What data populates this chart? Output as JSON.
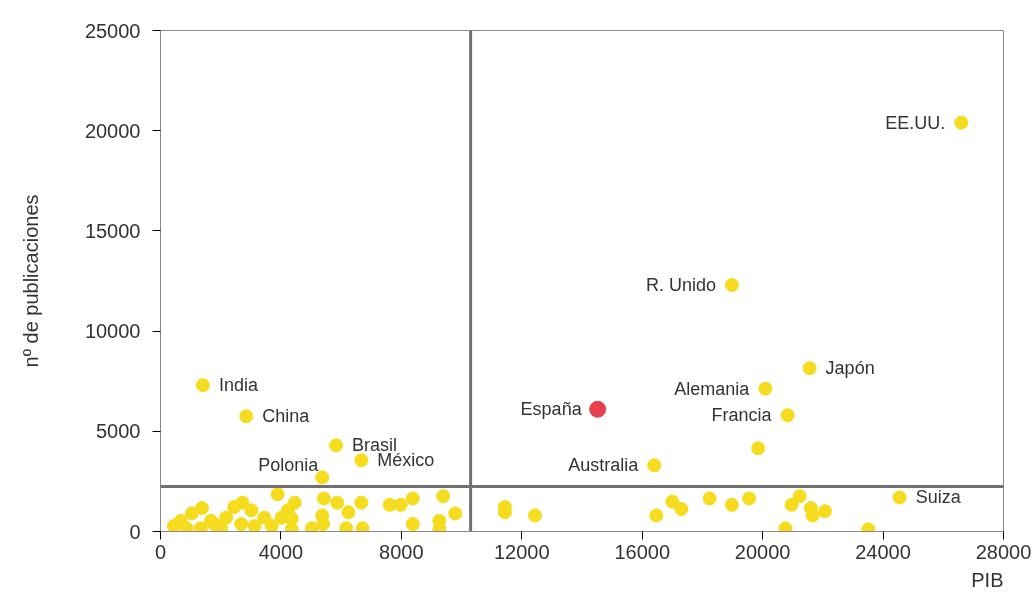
{
  "chart_data": {
    "type": "scatter",
    "xlabel": "PIB",
    "ylabel": "nº de publicaciones",
    "xlim": [
      0,
      28000
    ],
    "ylim": [
      0,
      25000
    ],
    "xticks": [
      0,
      4000,
      8000,
      12000,
      16000,
      20000,
      24000,
      28000
    ],
    "yticks": [
      0,
      5000,
      10000,
      15000,
      20000,
      25000
    ],
    "grid": false,
    "marker": "circle",
    "x": [
      26600,
      18980,
      21560,
      20090,
      20830,
      19850,
      16400,
      14520,
      24550,
      1410,
      2850,
      5830,
      6670,
      5370,
      11440,
      11440,
      12440,
      16470,
      17000,
      17300,
      18240,
      18980,
      19550,
      20760,
      20960,
      21230,
      21600,
      21660,
      22070,
      23510,
      3890,
      5430,
      5870,
      6240,
      6670,
      7610,
      7980,
      8380,
      9390,
      9790,
      8380,
      9260,
      9260,
      6710,
      6170,
      5370,
      5400,
      5030,
      4360,
      4460,
      4230,
      4020,
      3450,
      3020,
      2720,
      2450,
      2180,
      2680,
      1780,
      1380,
      1040,
      670,
      440,
      870,
      1340,
      1680,
      2010,
      3120,
      3690,
      4360
    ],
    "values": [
      20400,
      12300,
      8150,
      7130,
      5800,
      4150,
      3300,
      6100,
      1700,
      7300,
      5750,
      4300,
      3550,
      2700,
      1220,
      960,
      800,
      800,
      1490,
      1120,
      1650,
      1330,
      1650,
      160,
      1330,
      1760,
      1170,
      800,
      1010,
      110,
      1860,
      1650,
      1440,
      960,
      1440,
      1330,
      1330,
      1650,
      1760,
      900,
      370,
      530,
      110,
      160,
      160,
      800,
      370,
      160,
      110,
      1440,
      1060,
      690,
      690,
      1060,
      1440,
      1220,
      690,
      370,
      370,
      1170,
      900,
      530,
      270,
      160,
      160,
      530,
      160,
      270,
      270,
      640
    ],
    "colors": [
      "#f5dc1e",
      "#f5dc1e",
      "#f5dc1e",
      "#f5dc1e",
      "#f5dc1e",
      "#f5dc1e",
      "#f5dc1e",
      "#e8404e",
      "#f5dc1e",
      "#f5dc1e",
      "#f5dc1e",
      "#f5dc1e",
      "#f5dc1e",
      "#f5dc1e",
      "#f5dc1e",
      "#f5dc1e",
      "#f5dc1e",
      "#f5dc1e",
      "#f5dc1e",
      "#f5dc1e",
      "#f5dc1e",
      "#f5dc1e",
      "#f5dc1e",
      "#f5dc1e",
      "#f5dc1e",
      "#f5dc1e",
      "#f5dc1e",
      "#f5dc1e",
      "#f5dc1e",
      "#f5dc1e",
      "#f5dc1e",
      "#f5dc1e",
      "#f5dc1e",
      "#f5dc1e",
      "#f5dc1e",
      "#f5dc1e",
      "#f5dc1e",
      "#f5dc1e",
      "#f5dc1e",
      "#f5dc1e",
      "#f5dc1e",
      "#f5dc1e",
      "#f5dc1e",
      "#f5dc1e",
      "#f5dc1e",
      "#f5dc1e",
      "#f5dc1e",
      "#f5dc1e",
      "#f5dc1e",
      "#f5dc1e",
      "#f5dc1e",
      "#f5dc1e",
      "#f5dc1e",
      "#f5dc1e",
      "#f5dc1e",
      "#f5dc1e",
      "#f5dc1e",
      "#f5dc1e",
      "#f5dc1e",
      "#f5dc1e",
      "#f5dc1e",
      "#f5dc1e",
      "#f5dc1e",
      "#f5dc1e",
      "#f5dc1e",
      "#f5dc1e",
      "#f5dc1e",
      "#f5dc1e",
      "#f5dc1e",
      "#f5dc1e"
    ],
    "ref_lines": [
      {
        "axis": "x",
        "value": 10300,
        "color": "#707070"
      },
      {
        "axis": "y",
        "value": 2250,
        "color": "#707070"
      }
    ],
    "annotations": [
      {
        "text": "EE.UU.",
        "x": 26600,
        "y": 20400
      },
      {
        "text": "R. Unido",
        "x": 18980,
        "y": 12300
      },
      {
        "text": "Japón",
        "x": 21560,
        "y": 8150
      },
      {
        "text": "Alemania",
        "x": 20090,
        "y": 7130
      },
      {
        "text": "Francia",
        "x": 20830,
        "y": 5800
      },
      {
        "text": "Australia",
        "x": 16400,
        "y": 3300
      },
      {
        "text": "España",
        "x": 14520,
        "y": 6100
      },
      {
        "text": "Suiza",
        "x": 24550,
        "y": 1700
      },
      {
        "text": "India",
        "x": 1410,
        "y": 7300
      },
      {
        "text": "China",
        "x": 2850,
        "y": 5750
      },
      {
        "text": "Brasil",
        "x": 5830,
        "y": 4300
      },
      {
        "text": "México",
        "x": 6670,
        "y": 3550
      },
      {
        "text": "Polonia",
        "x": 5370,
        "y": 2700
      }
    ]
  }
}
